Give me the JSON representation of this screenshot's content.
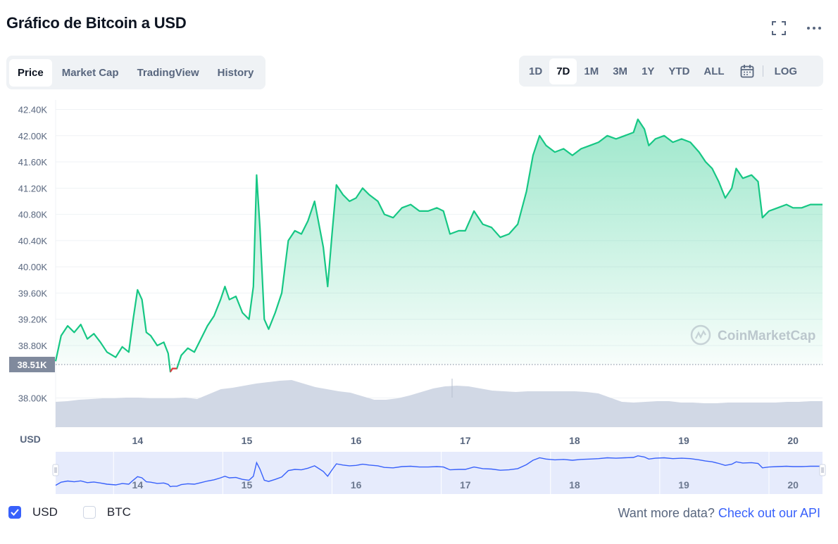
{
  "title": "Gráfico de Bitcoin a USD",
  "toolbar": {
    "fullscreen_icon": "fullscreen-icon",
    "more_icon": "more-horizontal-icon",
    "tabs": [
      "Price",
      "Market Cap",
      "TradingView",
      "History"
    ],
    "active_tab": "Price",
    "ranges": [
      "1D",
      "7D",
      "1M",
      "3M",
      "1Y",
      "YTD",
      "ALL"
    ],
    "active_range": "7D",
    "calendar_icon": "calendar-icon",
    "log_label": "LOG"
  },
  "chart_data": {
    "type": "area",
    "currency_label": "USD",
    "y_ticks": [
      "42.40K",
      "42.00K",
      "41.60K",
      "41.20K",
      "40.80K",
      "40.40K",
      "40.00K",
      "39.60K",
      "39.20K",
      "38.80K",
      "38.00K"
    ],
    "ylim": [
      37600,
      42400
    ],
    "current_price_label": "38.51K",
    "reference_price": 38510,
    "x_ticks": [
      "14",
      "15",
      "16",
      "17",
      "18",
      "19",
      "20"
    ],
    "x_range_days": [
      13.25,
      20.27
    ],
    "series": [
      {
        "values": [
          [
            13.25,
            38560
          ],
          [
            13.3,
            38950
          ],
          [
            13.36,
            39100
          ],
          [
            13.42,
            39000
          ],
          [
            13.48,
            39120
          ],
          [
            13.54,
            38900
          ],
          [
            13.6,
            38980
          ],
          [
            13.66,
            38850
          ],
          [
            13.72,
            38700
          ],
          [
            13.8,
            38620
          ],
          [
            13.86,
            38780
          ],
          [
            13.92,
            38700
          ],
          [
            13.96,
            39200
          ],
          [
            14.0,
            39650
          ],
          [
            14.04,
            39500
          ],
          [
            14.08,
            39000
          ],
          [
            14.12,
            38950
          ],
          [
            14.18,
            38800
          ],
          [
            14.24,
            38850
          ],
          [
            14.28,
            38680
          ],
          [
            14.3,
            38400
          ],
          [
            14.32,
            38450
          ],
          [
            14.36,
            38450
          ],
          [
            14.4,
            38650
          ],
          [
            14.46,
            38760
          ],
          [
            14.52,
            38700
          ],
          [
            14.58,
            38900
          ],
          [
            14.64,
            39100
          ],
          [
            14.7,
            39250
          ],
          [
            14.76,
            39500
          ],
          [
            14.8,
            39700
          ],
          [
            14.84,
            39500
          ],
          [
            14.9,
            39550
          ],
          [
            14.96,
            39300
          ],
          [
            15.02,
            39200
          ],
          [
            15.06,
            39700
          ],
          [
            15.09,
            41400
          ],
          [
            15.12,
            40600
          ],
          [
            15.16,
            39200
          ],
          [
            15.2,
            39050
          ],
          [
            15.26,
            39300
          ],
          [
            15.32,
            39600
          ],
          [
            15.38,
            40400
          ],
          [
            15.44,
            40550
          ],
          [
            15.5,
            40500
          ],
          [
            15.56,
            40700
          ],
          [
            15.62,
            41000
          ],
          [
            15.66,
            40650
          ],
          [
            15.7,
            40300
          ],
          [
            15.74,
            39700
          ],
          [
            15.78,
            40500
          ],
          [
            15.82,
            41250
          ],
          [
            15.88,
            41100
          ],
          [
            15.94,
            41000
          ],
          [
            16.0,
            41050
          ],
          [
            16.06,
            41200
          ],
          [
            16.12,
            41100
          ],
          [
            16.2,
            41000
          ],
          [
            16.26,
            40800
          ],
          [
            16.34,
            40750
          ],
          [
            16.42,
            40900
          ],
          [
            16.5,
            40950
          ],
          [
            16.58,
            40850
          ],
          [
            16.66,
            40850
          ],
          [
            16.74,
            40900
          ],
          [
            16.8,
            40850
          ],
          [
            16.86,
            40500
          ],
          [
            16.94,
            40550
          ],
          [
            17.0,
            40550
          ],
          [
            17.08,
            40850
          ],
          [
            17.16,
            40650
          ],
          [
            17.24,
            40600
          ],
          [
            17.32,
            40450
          ],
          [
            17.4,
            40500
          ],
          [
            17.48,
            40650
          ],
          [
            17.56,
            41150
          ],
          [
            17.62,
            41700
          ],
          [
            17.68,
            42000
          ],
          [
            17.74,
            41850
          ],
          [
            17.82,
            41750
          ],
          [
            17.9,
            41800
          ],
          [
            17.98,
            41700
          ],
          [
            18.06,
            41800
          ],
          [
            18.14,
            41850
          ],
          [
            18.22,
            41900
          ],
          [
            18.3,
            42000
          ],
          [
            18.38,
            41950
          ],
          [
            18.46,
            42000
          ],
          [
            18.54,
            42050
          ],
          [
            18.58,
            42250
          ],
          [
            18.64,
            42100
          ],
          [
            18.68,
            41850
          ],
          [
            18.74,
            41950
          ],
          [
            18.82,
            42000
          ],
          [
            18.9,
            41900
          ],
          [
            18.98,
            41950
          ],
          [
            19.06,
            41900
          ],
          [
            19.14,
            41750
          ],
          [
            19.2,
            41600
          ],
          [
            19.26,
            41500
          ],
          [
            19.32,
            41300
          ],
          [
            19.38,
            41050
          ],
          [
            19.44,
            41200
          ],
          [
            19.48,
            41500
          ],
          [
            19.54,
            41350
          ],
          [
            19.62,
            41400
          ],
          [
            19.68,
            41300
          ],
          [
            19.72,
            40750
          ],
          [
            19.78,
            40850
          ],
          [
            19.86,
            40900
          ],
          [
            19.94,
            40950
          ],
          [
            20.0,
            40900
          ],
          [
            20.08,
            40900
          ],
          [
            20.16,
            40950
          ],
          [
            20.27,
            40950
          ]
        ]
      }
    ],
    "navigator": {
      "x_ticks": [
        "14",
        "15",
        "16",
        "17",
        "18",
        "19",
        "20"
      ]
    },
    "watermark": "CoinMarketCap",
    "colors": {
      "up": "#16c784",
      "down": "#ea3943",
      "volume": "#cfd6e4",
      "navigator_line": "#3861fb",
      "navigator_fill": "#dde4fb"
    }
  },
  "currency_toggle": {
    "usd": {
      "label": "USD",
      "checked": true
    },
    "btc": {
      "label": "BTC",
      "checked": false
    }
  },
  "footer": {
    "text": "Want more data?",
    "link": "Check out our API"
  }
}
